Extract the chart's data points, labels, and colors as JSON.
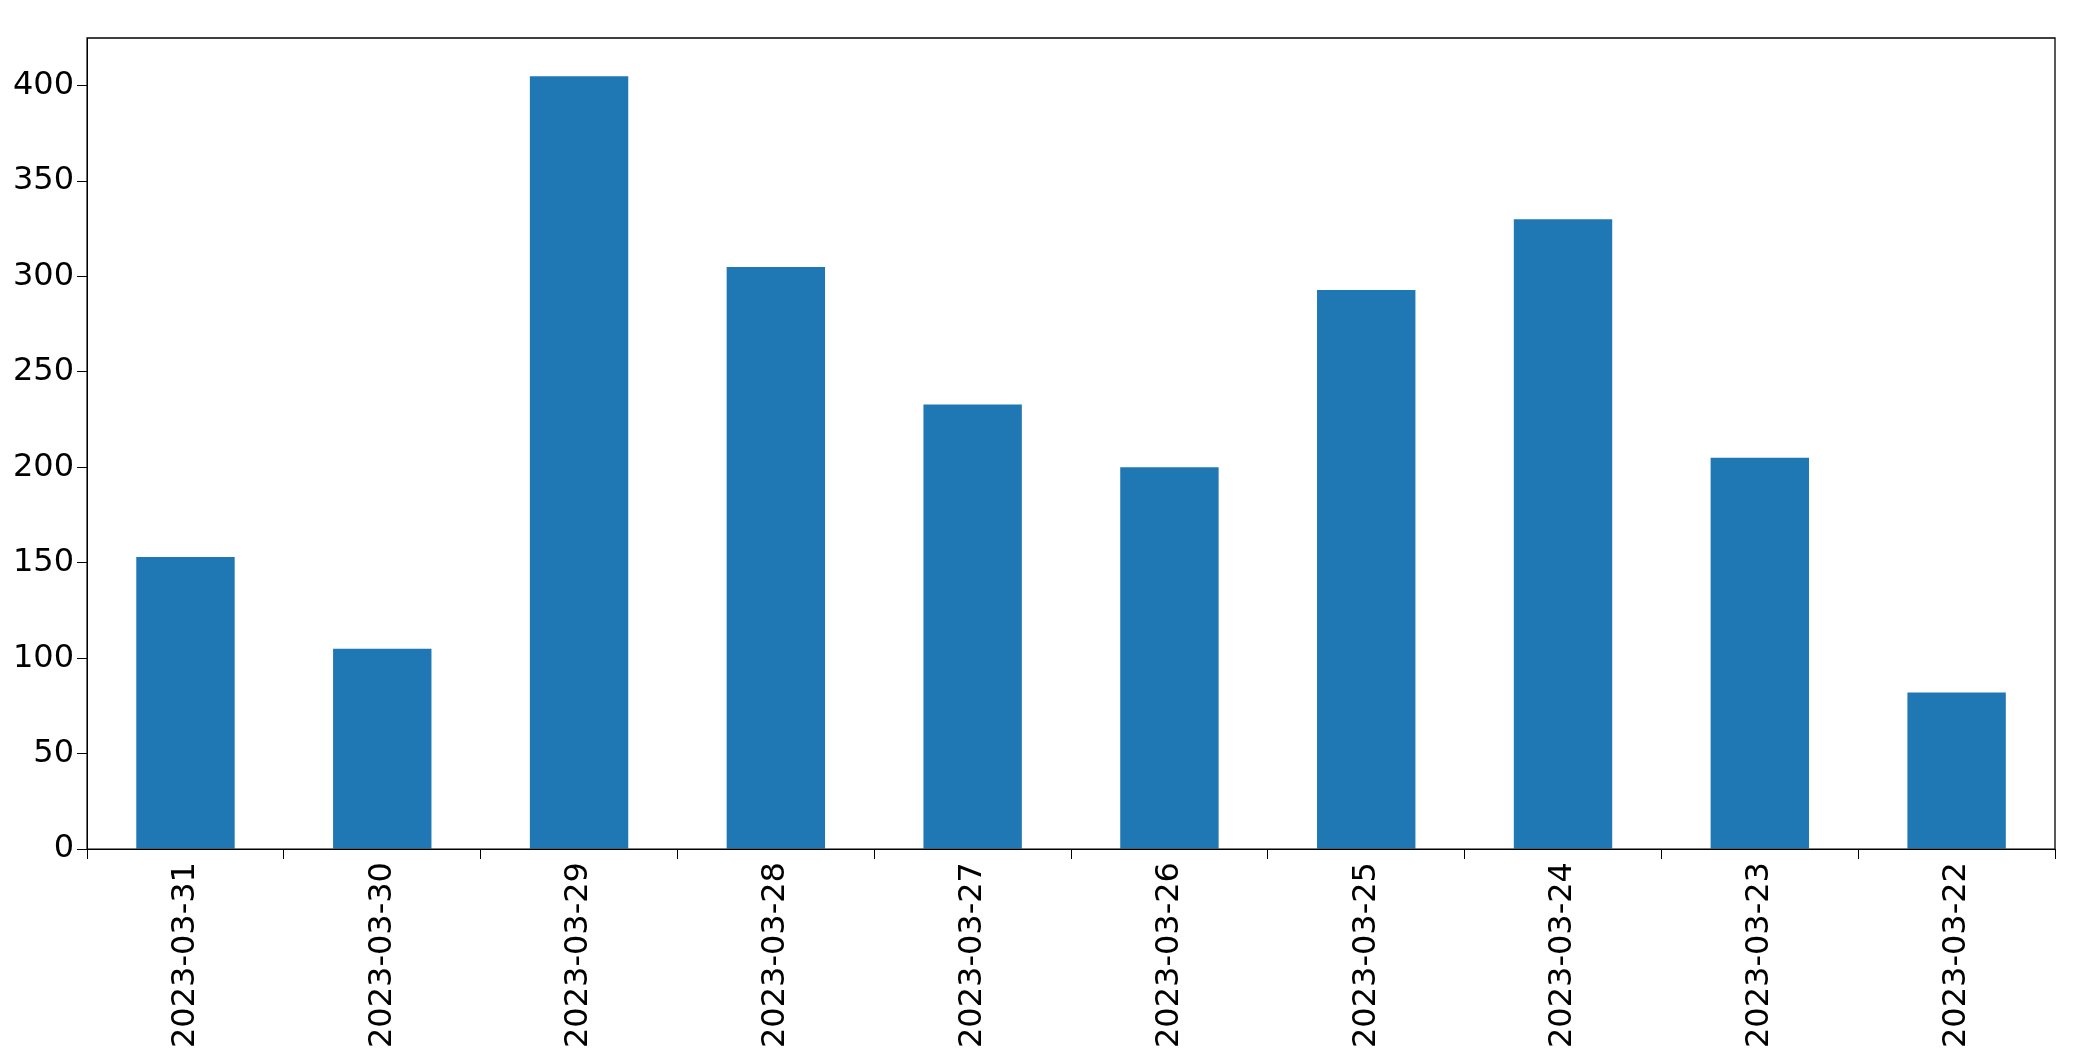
{
  "chart_data": {
    "type": "bar",
    "categories": [
      "2023-03-31",
      "2023-03-30",
      "2023-03-29",
      "2023-03-28",
      "2023-03-27",
      "2023-03-26",
      "2023-03-25",
      "2023-03-24",
      "2023-03-23",
      "2023-03-22"
    ],
    "values": [
      153,
      105,
      405,
      305,
      233,
      200,
      293,
      330,
      205,
      82
    ],
    "color": "#1f77b4",
    "ylim": [
      0,
      425
    ],
    "yticks": [
      0,
      50,
      100,
      150,
      200,
      250,
      300,
      350,
      400
    ]
  }
}
